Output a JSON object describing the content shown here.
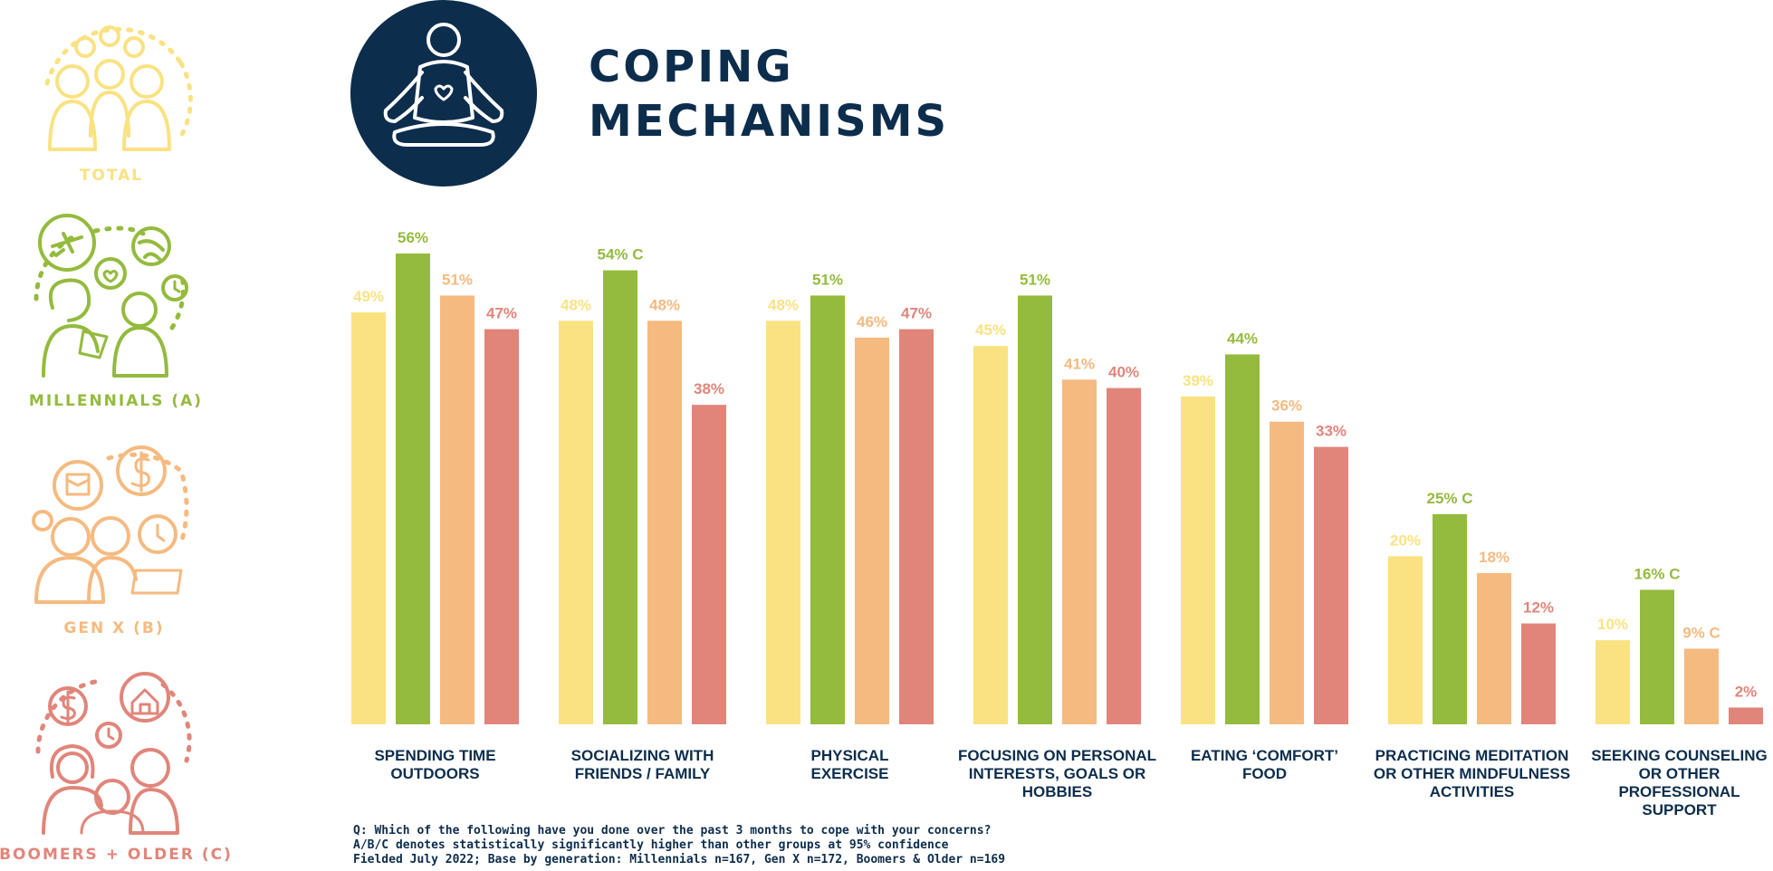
{
  "title_lines": [
    "COPING",
    "MECHANISMS"
  ],
  "icons": {
    "title": "meditation-heart-icon",
    "total": "group-of-people-icon",
    "millennials": "travel-social-people-icon",
    "genx": "family-finance-icon",
    "boomers": "home-finance-family-icon"
  },
  "legend": [
    {
      "key": "total",
      "label": "TOTAL",
      "color": "#fae282"
    },
    {
      "key": "millennials",
      "label": "MILLENNIALS (A)",
      "color": "#94bb3d"
    },
    {
      "key": "genx",
      "label": "GEN X (B)",
      "color": "#f5ba80"
    },
    {
      "key": "boomers",
      "label": "BOOMERS + OLDER (C)",
      "color": "#e1857a"
    }
  ],
  "colors": {
    "navy": "#0d2d4c"
  },
  "chart_data": {
    "type": "bar",
    "categories": [
      [
        "SPENDING TIME",
        "OUTDOORS"
      ],
      [
        "SOCIALIZING WITH",
        "FRIENDS / FAMILY"
      ],
      [
        "PHYSICAL",
        "EXERCISE"
      ],
      [
        "FOCUSING ON PERSONAL",
        "INTERESTS, GOALS OR",
        "HOBBIES"
      ],
      [
        "EATING ‘COMFORT’",
        "FOOD"
      ],
      [
        "PRACTICING MEDITATION",
        "OR OTHER MINDFULNESS",
        "ACTIVITIES"
      ],
      [
        "SEEKING COUNSELING",
        "OR OTHER",
        "PROFESSIONAL",
        "SUPPORT"
      ]
    ],
    "series": [
      {
        "name": "TOTAL",
        "values": [
          49,
          48,
          48,
          45,
          39,
          20,
          10
        ],
        "labels": [
          "49%",
          "48%",
          "48%",
          "45%",
          "39%",
          "20%",
          "10%"
        ]
      },
      {
        "name": "MILLENNIALS (A)",
        "values": [
          56,
          54,
          51,
          51,
          44,
          25,
          16
        ],
        "labels": [
          "56%",
          "54% C",
          "51%",
          "51%",
          "44%",
          "25% C",
          "16% C"
        ]
      },
      {
        "name": "GEN X (B)",
        "values": [
          51,
          48,
          46,
          41,
          36,
          18,
          9
        ],
        "labels": [
          "51%",
          "48%",
          "46%",
          "41%",
          "36%",
          "18%",
          "9% C"
        ]
      },
      {
        "name": "BOOMERS + OLDER (C)",
        "values": [
          47,
          38,
          47,
          40,
          33,
          12,
          2
        ],
        "labels": [
          "47%",
          "38%",
          "47%",
          "40%",
          "33%",
          "12%",
          "2%"
        ]
      }
    ],
    "ylim": [
      0,
      56
    ],
    "grid": false
  },
  "notes": [
    "Q: Which of the following have you done over the past 3 months to cope with your concerns?",
    "A/B/C denotes statistically significantly higher than other groups at 95% confidence",
    "Fielded July 2022; Base by generation: Millennials n=167, Gen X n=172, Boomers & Older n=169"
  ]
}
